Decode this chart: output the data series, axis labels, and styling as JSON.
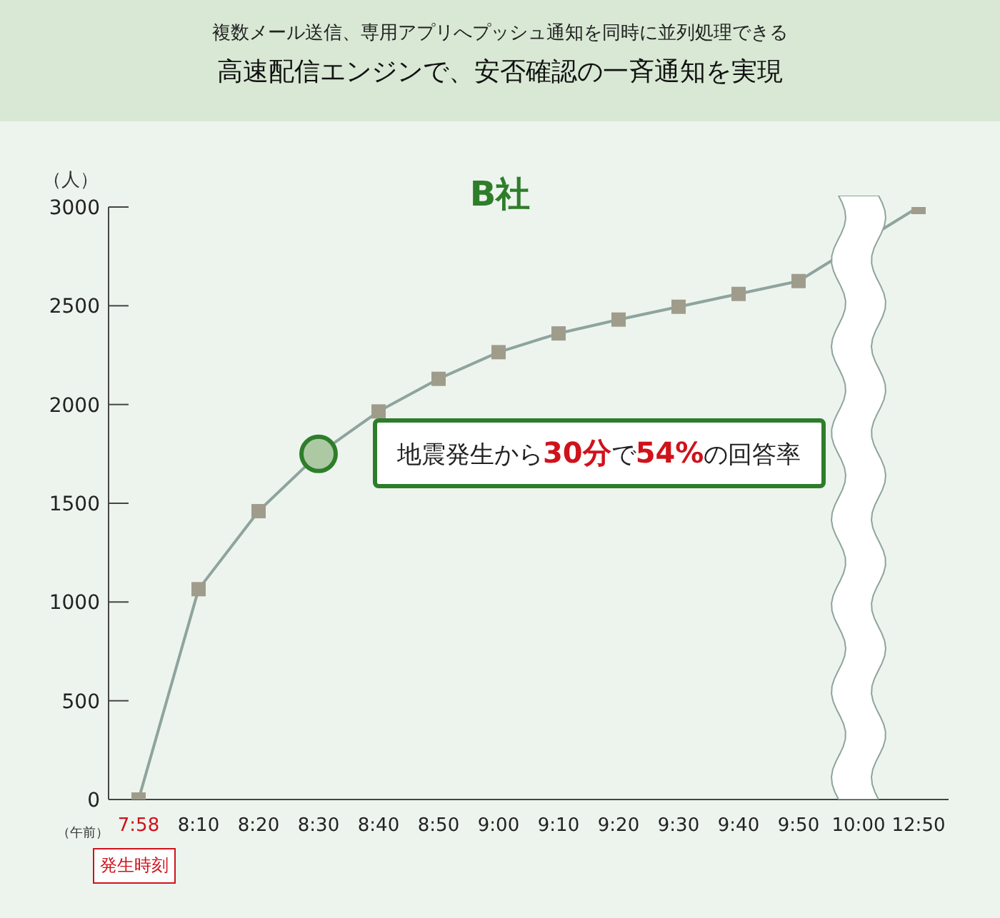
{
  "chart_data": {
    "type": "line",
    "subtitle": "複数メール送信、専用アプリへプッシュ通知を同時に並列処理できる",
    "title": "高速配信エンジンで、安否確認の一斉通知を実現",
    "ylabel": "（人）",
    "categories": [
      "7:58",
      "8:10",
      "8:20",
      "8:30",
      "8:40",
      "8:50",
      "9:00",
      "9:10",
      "9:20",
      "9:30",
      "9:40",
      "9:50",
      "10:00",
      "12:50"
    ],
    "series": [
      {
        "color": "#8ea49c",
        "values": [
          0,
          1065,
          1460,
          1750,
          1965,
          2130,
          2265,
          2360,
          2430,
          2495,
          2560,
          2625,
          null,
          3000
        ]
      }
    ],
    "ylim": [
      0,
      3000
    ],
    "yticks": [
      0,
      500,
      1000,
      1500,
      2000,
      2500,
      3000
    ],
    "grid": false,
    "legend": false,
    "marker": "square",
    "line_style": "solid",
    "annotations": [
      "B社",
      "（午前）",
      {
        "text": "地震発生から30分で54%の回答率",
        "x": "8:30",
        "y": 1750
      },
      "発生時刻"
    ]
  }
}
